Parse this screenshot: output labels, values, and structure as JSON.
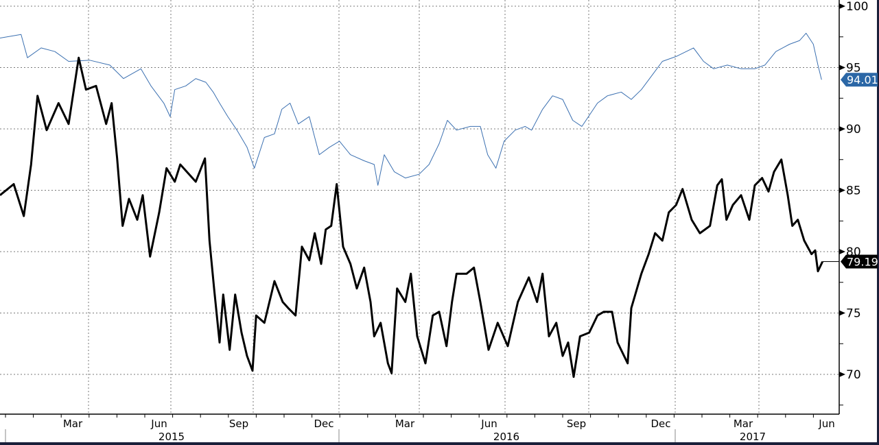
{
  "chart_data": {
    "type": "line",
    "title": "",
    "x_unit": "days since Jan 2015",
    "ylim": [
      66.5,
      101
    ],
    "y_ticks": [
      "70",
      "75",
      "80",
      "85",
      "90",
      "95",
      "100"
    ],
    "month_labels": [
      "Mar",
      "Jun",
      "Sep",
      "Dec",
      "Mar",
      "Jun",
      "Sep",
      "Dec",
      "Mar",
      "Jun"
    ],
    "year_labels": [
      "2015",
      "2016",
      "2017"
    ],
    "grid": true,
    "series": [
      {
        "name": "blue series",
        "color": "#3a6fb0",
        "last_label": "94.01",
        "points": [
          [
            -6,
            97.4
          ],
          [
            17,
            97.7
          ],
          [
            24,
            95.8
          ],
          [
            39,
            96.6
          ],
          [
            54,
            96.3
          ],
          [
            69,
            95.5
          ],
          [
            92,
            95.6
          ],
          [
            114,
            95.2
          ],
          [
            129,
            94.1
          ],
          [
            148,
            94.9
          ],
          [
            159,
            93.5
          ],
          [
            173,
            92.1
          ],
          [
            180,
            91.0
          ],
          [
            185,
            93.2
          ],
          [
            197,
            93.5
          ],
          [
            208,
            94.1
          ],
          [
            219,
            93.8
          ],
          [
            227,
            93.0
          ],
          [
            234,
            92.1
          ],
          [
            243,
            91.0
          ],
          [
            253,
            89.9
          ],
          [
            264,
            88.5
          ],
          [
            272,
            86.8
          ],
          [
            283,
            89.3
          ],
          [
            294,
            89.6
          ],
          [
            302,
            91.6
          ],
          [
            311,
            92.1
          ],
          [
            320,
            90.4
          ],
          [
            332,
            91.0
          ],
          [
            343,
            87.9
          ],
          [
            354,
            88.5
          ],
          [
            365,
            89.0
          ],
          [
            377,
            87.9
          ],
          [
            392,
            87.4
          ],
          [
            403,
            87.1
          ],
          [
            407,
            85.4
          ],
          [
            414,
            87.9
          ],
          [
            425,
            86.5
          ],
          [
            437,
            86.0
          ],
          [
            452,
            86.3
          ],
          [
            463,
            87.1
          ],
          [
            474,
            88.8
          ],
          [
            483,
            90.7
          ],
          [
            493,
            89.9
          ],
          [
            508,
            90.2
          ],
          [
            519,
            90.2
          ],
          [
            527,
            87.9
          ],
          [
            536,
            86.8
          ],
          [
            545,
            89.0
          ],
          [
            557,
            89.9
          ],
          [
            568,
            90.2
          ],
          [
            575,
            89.9
          ],
          [
            587,
            91.6
          ],
          [
            598,
            92.7
          ],
          [
            609,
            92.4
          ],
          [
            620,
            90.7
          ],
          [
            630,
            90.2
          ],
          [
            647,
            92.1
          ],
          [
            658,
            92.7
          ],
          [
            673,
            93.0
          ],
          [
            684,
            92.4
          ],
          [
            695,
            93.2
          ],
          [
            707,
            94.4
          ],
          [
            718,
            95.5
          ],
          [
            733,
            95.9
          ],
          [
            744,
            96.3
          ],
          [
            752,
            96.6
          ],
          [
            763,
            95.5
          ],
          [
            774,
            94.9
          ],
          [
            789,
            95.2
          ],
          [
            804,
            94.9
          ],
          [
            819,
            94.9
          ],
          [
            830,
            95.2
          ],
          [
            842,
            96.3
          ],
          [
            857,
            96.9
          ],
          [
            868,
            97.2
          ],
          [
            875,
            97.8
          ],
          [
            883,
            96.9
          ],
          [
            888,
            95.2
          ],
          [
            892,
            94.01
          ]
        ]
      },
      {
        "name": "black series",
        "color": "#000000",
        "last_label": "79.19",
        "points": [
          [
            -6,
            84.6
          ],
          [
            9,
            85.5
          ],
          [
            20,
            82.9
          ],
          [
            28,
            87.1
          ],
          [
            35,
            92.7
          ],
          [
            45,
            89.9
          ],
          [
            58,
            92.1
          ],
          [
            69,
            90.4
          ],
          [
            80,
            95.8
          ],
          [
            88,
            93.2
          ],
          [
            99,
            93.5
          ],
          [
            110,
            90.4
          ],
          [
            116,
            92.1
          ],
          [
            122,
            87.6
          ],
          [
            128,
            82.1
          ],
          [
            135,
            84.3
          ],
          [
            144,
            82.6
          ],
          [
            150,
            84.6
          ],
          [
            158,
            79.6
          ],
          [
            168,
            83.2
          ],
          [
            176,
            86.8
          ],
          [
            185,
            85.7
          ],
          [
            191,
            87.1
          ],
          [
            208,
            85.7
          ],
          [
            218,
            87.6
          ],
          [
            223,
            80.9
          ],
          [
            228,
            77.0
          ],
          [
            234,
            72.6
          ],
          [
            238,
            76.5
          ],
          [
            245,
            72.0
          ],
          [
            251,
            76.5
          ],
          [
            258,
            73.4
          ],
          [
            264,
            71.5
          ],
          [
            270,
            70.3
          ],
          [
            274,
            74.8
          ],
          [
            283,
            74.2
          ],
          [
            294,
            77.6
          ],
          [
            303,
            75.9
          ],
          [
            309,
            75.4
          ],
          [
            317,
            74.8
          ],
          [
            324,
            80.4
          ],
          [
            332,
            79.3
          ],
          [
            338,
            81.5
          ],
          [
            345,
            79.0
          ],
          [
            350,
            81.8
          ],
          [
            356,
            82.1
          ],
          [
            362,
            85.5
          ],
          [
            369,
            80.4
          ],
          [
            377,
            79.0
          ],
          [
            384,
            77.0
          ],
          [
            392,
            78.7
          ],
          [
            399,
            75.9
          ],
          [
            403,
            73.1
          ],
          [
            410,
            74.2
          ],
          [
            418,
            70.9
          ],
          [
            422,
            70.1
          ],
          [
            428,
            77.0
          ],
          [
            437,
            75.9
          ],
          [
            443,
            78.2
          ],
          [
            450,
            73.1
          ],
          [
            459,
            70.9
          ],
          [
            467,
            74.8
          ],
          [
            474,
            75.1
          ],
          [
            482,
            72.3
          ],
          [
            488,
            75.9
          ],
          [
            493,
            78.2
          ],
          [
            504,
            78.2
          ],
          [
            512,
            78.7
          ],
          [
            519,
            75.9
          ],
          [
            528,
            72.0
          ],
          [
            538,
            74.2
          ],
          [
            549,
            72.3
          ],
          [
            560,
            75.9
          ],
          [
            572,
            77.9
          ],
          [
            581,
            75.9
          ],
          [
            587,
            78.2
          ],
          [
            594,
            73.1
          ],
          [
            602,
            74.2
          ],
          [
            609,
            71.5
          ],
          [
            615,
            72.6
          ],
          [
            621,
            69.8
          ],
          [
            628,
            73.1
          ],
          [
            638,
            73.4
          ],
          [
            647,
            74.8
          ],
          [
            654,
            75.1
          ],
          [
            663,
            75.1
          ],
          [
            669,
            72.6
          ],
          [
            680,
            70.9
          ],
          [
            684,
            75.4
          ],
          [
            695,
            78.2
          ],
          [
            703,
            79.8
          ],
          [
            710,
            81.5
          ],
          [
            718,
            80.9
          ],
          [
            725,
            83.2
          ],
          [
            733,
            83.8
          ],
          [
            740,
            85.1
          ],
          [
            750,
            82.6
          ],
          [
            759,
            81.5
          ],
          [
            770,
            82.1
          ],
          [
            778,
            85.4
          ],
          [
            783,
            85.9
          ],
          [
            788,
            82.6
          ],
          [
            795,
            83.8
          ],
          [
            804,
            84.6
          ],
          [
            813,
            82.6
          ],
          [
            819,
            85.4
          ],
          [
            827,
            86.0
          ],
          [
            834,
            84.9
          ],
          [
            840,
            86.5
          ],
          [
            848,
            87.5
          ],
          [
            855,
            84.6
          ],
          [
            860,
            82.1
          ],
          [
            866,
            82.6
          ],
          [
            873,
            80.9
          ],
          [
            881,
            79.8
          ],
          [
            885,
            80.1
          ],
          [
            888,
            78.4
          ],
          [
            893,
            79.19
          ]
        ]
      }
    ]
  }
}
